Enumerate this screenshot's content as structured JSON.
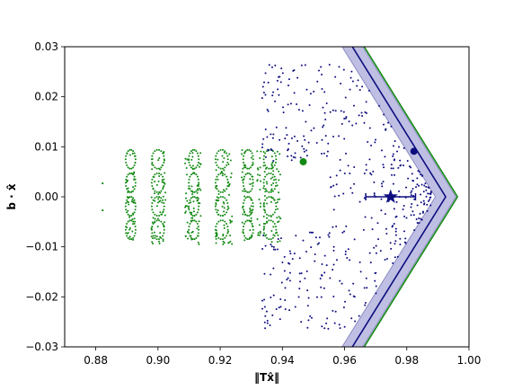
{
  "chart_data": {
    "type": "scatter",
    "title": "",
    "xlabel": "‖Tx̂‖",
    "ylabel": "b · x̂",
    "xlim": [
      0.87,
      1.0
    ],
    "ylim": [
      -0.03,
      0.03
    ],
    "xticks": [
      0.88,
      0.9,
      0.92,
      0.94,
      0.96,
      0.98,
      1.0
    ],
    "xtick_labels": [
      "0.88",
      "0.90",
      "0.92",
      "0.94",
      "0.96",
      "0.98",
      "1.00"
    ],
    "yticks": [
      -0.03,
      -0.02,
      -0.01,
      0.0,
      0.01,
      0.02,
      0.03
    ],
    "ytick_labels": [
      "−0.03",
      "−0.02",
      "−0.01",
      "0.00",
      "0.01",
      "0.02",
      "0.03"
    ],
    "grid": false,
    "colors": {
      "green": "#138a13",
      "blue": "#0d0d80",
      "band_fill": "#8080c8",
      "band_edge": "#8c8cc4"
    },
    "green_cloud": {
      "left_points": [
        [
          0.8822,
          0.0027
        ],
        [
          0.8822,
          -0.0027
        ]
      ],
      "stripe_x": [
        0.8905,
        0.8921,
        0.8985,
        0.9002,
        0.9018,
        0.9093,
        0.911,
        0.9132,
        0.919,
        0.921,
        0.9232,
        0.9275,
        0.93,
        0.9325,
        0.9345,
        0.9368,
        0.9388
      ],
      "ellipse_x": [
        0.8912,
        0.9,
        0.9115,
        0.9205,
        0.929,
        0.936
      ],
      "y_extent": 0.0095,
      "highlight_point": [
        0.9467,
        0.007
      ]
    },
    "blue_cloud": {
      "x_min": 0.9335,
      "top_y": 0.0265,
      "highlight_point": [
        0.9823,
        0.0091
      ]
    },
    "boundaries": {
      "green_vertex": 0.9963,
      "blue_vertex": 0.9925,
      "slope": 1.0,
      "band_half_width": 0.0033
    },
    "marker": {
      "x": 0.9748,
      "y": 0.0,
      "xerr_low": 0.9668,
      "xerr_high": 0.9828
    }
  }
}
